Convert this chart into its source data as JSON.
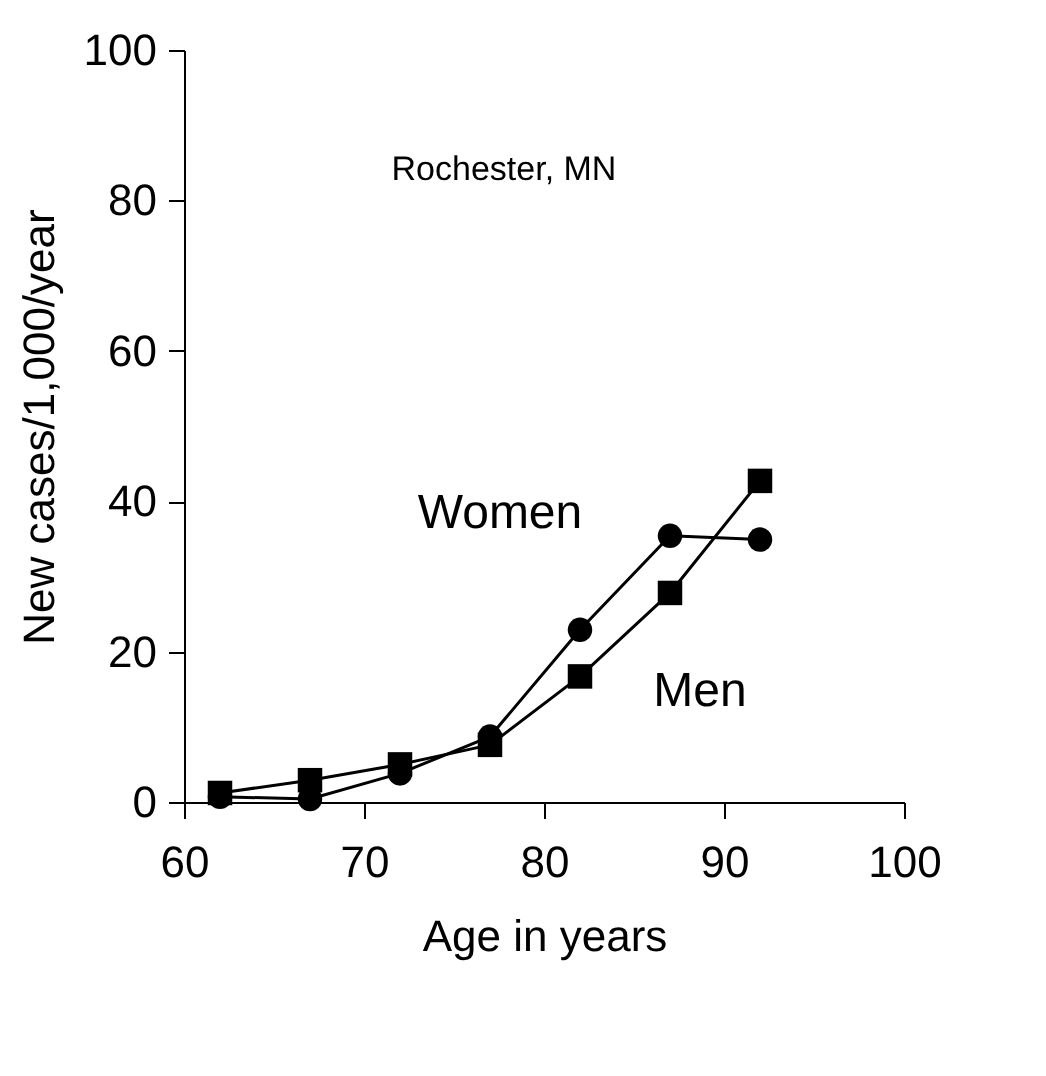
{
  "chart_data": {
    "type": "line",
    "xlabel": "Age in years",
    "ylabel": "New cases/1,000/year",
    "annotations": [
      "Rochester, MN"
    ],
    "series": [
      {
        "name": "Women",
        "color": "#000000",
        "marker": "circle",
        "x": [
          62,
          67,
          72,
          77,
          82,
          87,
          92
        ],
        "values": [
          0.7,
          0.4,
          3.8,
          8.7,
          22.9,
          35.4,
          34.9
        ]
      },
      {
        "name": "Men",
        "color": "#000000",
        "marker": "square",
        "x": [
          62,
          67,
          72,
          77,
          82,
          87,
          92
        ],
        "values": [
          1.2,
          2.9,
          5.0,
          7.6,
          16.7,
          27.8,
          42.7
        ]
      }
    ],
    "xlim": [
      60,
      100
    ],
    "xticks": [
      60,
      70,
      80,
      90,
      100
    ],
    "ylim": [
      0,
      100
    ],
    "yticks": [
      0,
      20,
      40,
      60,
      80,
      100
    ],
    "grid": false,
    "line_style": "solid"
  }
}
